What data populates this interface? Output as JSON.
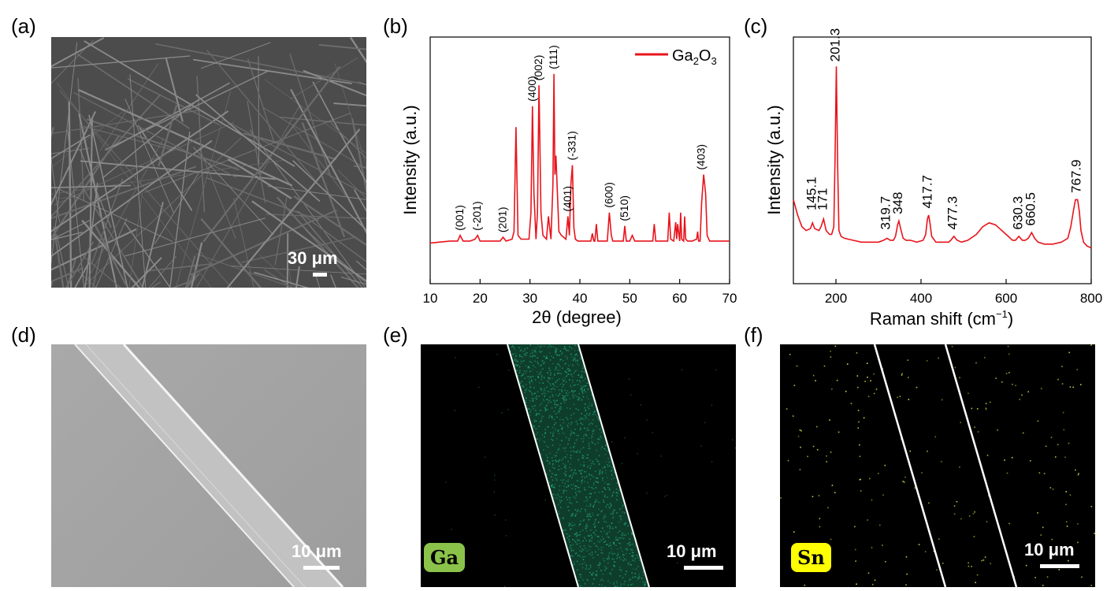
{
  "panels": {
    "a": {
      "label": "(a)",
      "scale_bar": "30 μm"
    },
    "b": {
      "label": "(b)"
    },
    "c": {
      "label": "(c)"
    },
    "d": {
      "label": "(d)",
      "scale_bar": "10 μm"
    },
    "e": {
      "label": "(e)",
      "scale_bar": "10 μm",
      "element": "Ga",
      "badge_color": "#8bc34a",
      "dot_color": "#1fa070"
    },
    "f": {
      "label": "(f)",
      "scale_bar": "10 μm",
      "element": "Sn",
      "badge_color": "#ffff00",
      "dot_color": "#d4d44a"
    }
  },
  "colors": {
    "line": "#e8141c"
  },
  "chart_data": [
    {
      "type": "line",
      "panel": "b",
      "xlabel": "2θ (degree)",
      "ylabel": "Intensity (a.u.)",
      "xlim": [
        10,
        70
      ],
      "xticks": [
        10,
        20,
        30,
        40,
        50,
        60,
        70
      ],
      "legend": {
        "label": "Ga2O3",
        "position": "top-right"
      },
      "series": [
        {
          "name": "Ga2O3",
          "x": [
            10,
            14,
            15.5,
            16,
            16.6,
            18,
            19,
            19.5,
            20,
            22,
            24,
            24.6,
            25.2,
            26.4,
            26.8,
            27.2,
            27.6,
            28.2,
            29.8,
            30.2,
            30.5,
            30.8,
            31.2,
            31.5,
            31.8,
            32.2,
            32.6,
            33.3,
            33.7,
            34.2,
            34.6,
            34.8,
            35.0,
            35.2,
            35.5,
            35.8,
            36.3,
            37.2,
            37.6,
            37.9,
            38.2,
            38.5,
            38.8,
            39.1,
            39.6,
            41,
            42.2,
            42.5,
            42.8,
            43.0,
            43.3,
            43.6,
            44.5,
            45.5,
            45.9,
            46.3,
            46.6,
            47.5,
            48.7,
            49.0,
            49.3,
            50,
            50.5,
            51,
            52,
            53.5,
            54.6,
            54.9,
            55.2,
            56.5,
            57.6,
            57.9,
            58.2,
            58.8,
            59.2,
            59.4,
            59.6,
            60,
            60.2,
            60.4,
            60.8,
            61,
            61.2,
            61.6,
            62.5,
            63.4,
            63.6,
            63.8,
            64.1,
            64.4,
            64.8,
            65.2,
            65.5,
            66,
            68,
            70
          ],
          "values": [
            4,
            5,
            5,
            8,
            5,
            5,
            6,
            8,
            5,
            5,
            5,
            7,
            5,
            6,
            10,
            65,
            8,
            6,
            6,
            20,
            76,
            30,
            6,
            20,
            87,
            20,
            8,
            6,
            18,
            6,
            35,
            93,
            40,
            50,
            30,
            10,
            8,
            6,
            18,
            8,
            35,
            45,
            12,
            6,
            5,
            5,
            5,
            9,
            5,
            5,
            14,
            5,
            5,
            5,
            20,
            8,
            5,
            5,
            5,
            13,
            5,
            5,
            8,
            5,
            5,
            5,
            5,
            14,
            5,
            5,
            5,
            20,
            6,
            5,
            15,
            6,
            14,
            5,
            20,
            6,
            5,
            18,
            6,
            5,
            5,
            6,
            10,
            5,
            5,
            25,
            40,
            30,
            8,
            5,
            5,
            5
          ]
        }
      ],
      "annotations": [
        {
          "x": 16.0,
          "y": 8,
          "text": "(001)"
        },
        {
          "x": 19.5,
          "y": 8,
          "text": "(-201)"
        },
        {
          "x": 24.6,
          "y": 7,
          "text": "(201)"
        },
        {
          "x": 30.5,
          "y": 76,
          "text": "(400)"
        },
        {
          "x": 31.8,
          "y": 87,
          "text": "(002)"
        },
        {
          "x": 34.8,
          "y": 93,
          "text": "(111)"
        },
        {
          "x": 37.6,
          "y": 18,
          "text": "(401)"
        },
        {
          "x": 38.5,
          "y": 45,
          "text": "(-331)"
        },
        {
          "x": 45.9,
          "y": 20,
          "text": "(600)"
        },
        {
          "x": 49.0,
          "y": 13,
          "text": "(510)"
        },
        {
          "x": 64.4,
          "y": 40,
          "text": "(403)"
        }
      ]
    },
    {
      "type": "line",
      "panel": "c",
      "xlabel": "Raman shift (cm",
      "xlabel_sup": "−1",
      "xlabel_end": ")",
      "ylabel": "Intensity (a.u.)",
      "xlim": [
        100,
        800
      ],
      "xticks": [
        200,
        400,
        600,
        800
      ],
      "series": [
        {
          "name": "Raman",
          "x": [
            100,
            110,
            120,
            130,
            140,
            145,
            150,
            160,
            165,
            171,
            177,
            185,
            190,
            195,
            198,
            201,
            204,
            207,
            212,
            220,
            240,
            260,
            280,
            300,
            312,
            320,
            328,
            335,
            340,
            345,
            348,
            352,
            358,
            365,
            375,
            390,
            405,
            411,
            415,
            418,
            421,
            425,
            435,
            450,
            465,
            470,
            477,
            485,
            495,
            510,
            530,
            545,
            560,
            575,
            590,
            605,
            615,
            622,
            630,
            638,
            645,
            652,
            660,
            667,
            675,
            690,
            710,
            730,
            745,
            752,
            758,
            763,
            768,
            772,
            776,
            782,
            790,
            800
          ],
          "values": [
            28,
            20,
            14,
            12,
            13,
            16,
            13,
            12,
            14,
            18,
            12,
            10,
            10,
            14,
            50,
            97,
            45,
            12,
            9,
            8,
            7,
            6,
            6,
            6,
            7,
            8,
            7,
            7,
            9,
            15,
            17,
            13,
            8,
            7,
            7,
            6,
            7,
            10,
            18,
            20,
            16,
            9,
            6,
            6,
            6,
            7,
            9,
            7,
            6,
            7,
            10,
            14,
            16,
            15,
            12,
            9,
            7,
            7,
            9,
            7,
            7,
            8,
            11,
            8,
            6,
            5,
            5,
            6,
            8,
            14,
            22,
            28,
            28,
            22,
            12,
            6,
            4,
            3
          ]
        }
      ],
      "annotations": [
        {
          "x": 145.1,
          "y": 20,
          "text": "145.1"
        },
        {
          "x": 171,
          "y": 20,
          "text": "171"
        },
        {
          "x": 201.3,
          "y": 97,
          "text": "201.3"
        },
        {
          "x": 319.7,
          "y": 10,
          "text": "319.7"
        },
        {
          "x": 348,
          "y": 18,
          "text": "348"
        },
        {
          "x": 417.7,
          "y": 21,
          "text": "417.7"
        },
        {
          "x": 477.3,
          "y": 10,
          "text": "477.3"
        },
        {
          "x": 630.3,
          "y": 10,
          "text": "630.3"
        },
        {
          "x": 660.5,
          "y": 12,
          "text": "660.5"
        },
        {
          "x": 767.9,
          "y": 29,
          "text": "767.9"
        }
      ]
    }
  ]
}
